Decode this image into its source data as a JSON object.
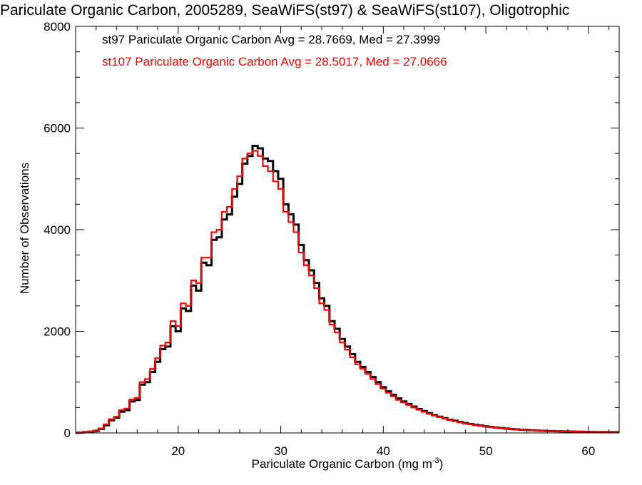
{
  "chart_data": {
    "type": "bar",
    "title": "Pariculate Organic Carbon, 2005289, SeaWiFS(st97) & SeaWiFS(st107), Oligotrophic",
    "xlabel": "Pariculate Organic Carbon (mg m",
    "xlabel_superscript": "-3",
    "xlabel_close": ")",
    "ylabel": "Number of Observations",
    "xlim": [
      10.0,
      63.0
    ],
    "ylim": [
      0,
      8000
    ],
    "xticks": [
      20,
      30,
      40,
      50,
      60
    ],
    "yticks": [
      0,
      2000,
      4000,
      6000,
      8000
    ],
    "grid": false,
    "legend_position": "top-left",
    "series": [
      {
        "name": "st97 Pariculate Organic Carbon Avg = 28.7669, Med = 27.3999",
        "label_color": "#000000",
        "color": "#000000",
        "points": [
          [
            10.0,
            0
          ],
          [
            10.5,
            5
          ],
          [
            11.0,
            15
          ],
          [
            11.5,
            25
          ],
          [
            12.0,
            40
          ],
          [
            12.5,
            80
          ],
          [
            13.0,
            150
          ],
          [
            13.5,
            250
          ],
          [
            14.0,
            300
          ],
          [
            14.5,
            420
          ],
          [
            15.0,
            450
          ],
          [
            15.5,
            620
          ],
          [
            16.0,
            650
          ],
          [
            16.5,
            950
          ],
          [
            17.0,
            1000
          ],
          [
            17.5,
            1200
          ],
          [
            18.0,
            1400
          ],
          [
            18.5,
            1650
          ],
          [
            19.0,
            1700
          ],
          [
            19.5,
            2100
          ],
          [
            20.0,
            2000
          ],
          [
            20.5,
            2450
          ],
          [
            21.0,
            2400
          ],
          [
            21.5,
            2900
          ],
          [
            22.0,
            2800
          ],
          [
            22.5,
            3350
          ],
          [
            23.0,
            3300
          ],
          [
            23.5,
            3800
          ],
          [
            24.0,
            3850
          ],
          [
            24.5,
            4200
          ],
          [
            25.0,
            4300
          ],
          [
            25.5,
            4650
          ],
          [
            26.0,
            4900
          ],
          [
            26.5,
            5300
          ],
          [
            27.0,
            5450
          ],
          [
            27.5,
            5650
          ],
          [
            28.0,
            5600
          ],
          [
            28.5,
            5400
          ],
          [
            29.0,
            5350
          ],
          [
            29.5,
            5150
          ],
          [
            30.0,
            5000
          ],
          [
            30.5,
            4500
          ],
          [
            31.0,
            4300
          ],
          [
            31.5,
            4100
          ],
          [
            32.0,
            3700
          ],
          [
            32.5,
            3400
          ],
          [
            33.0,
            3200
          ],
          [
            33.5,
            2950
          ],
          [
            34.0,
            2650
          ],
          [
            34.5,
            2500
          ],
          [
            35.0,
            2200
          ],
          [
            35.5,
            2050
          ],
          [
            36.0,
            1850
          ],
          [
            36.5,
            1700
          ],
          [
            37.0,
            1550
          ],
          [
            37.5,
            1400
          ],
          [
            38.0,
            1300
          ],
          [
            38.5,
            1200
          ],
          [
            39.0,
            1100
          ],
          [
            39.5,
            1000
          ],
          [
            40.0,
            900
          ],
          [
            40.5,
            820
          ],
          [
            41.0,
            750
          ],
          [
            41.5,
            680
          ],
          [
            42.0,
            620
          ],
          [
            42.5,
            570
          ],
          [
            43.0,
            520
          ],
          [
            43.5,
            470
          ],
          [
            44.0,
            430
          ],
          [
            44.5,
            390
          ],
          [
            45.0,
            350
          ],
          [
            45.5,
            320
          ],
          [
            46.0,
            290
          ],
          [
            46.5,
            260
          ],
          [
            47.0,
            240
          ],
          [
            47.5,
            215
          ],
          [
            48.0,
            195
          ],
          [
            48.5,
            175
          ],
          [
            49.0,
            160
          ],
          [
            49.5,
            145
          ],
          [
            50.0,
            130
          ],
          [
            50.5,
            118
          ],
          [
            51.0,
            106
          ],
          [
            51.5,
            96
          ],
          [
            52.0,
            86
          ],
          [
            52.5,
            78
          ],
          [
            53.0,
            70
          ],
          [
            53.5,
            64
          ],
          [
            54.0,
            58
          ],
          [
            54.5,
            52
          ],
          [
            55.0,
            47
          ],
          [
            55.5,
            43
          ],
          [
            56.0,
            39
          ],
          [
            56.5,
            36
          ],
          [
            57.0,
            33
          ],
          [
            57.5,
            30
          ],
          [
            58.0,
            28
          ],
          [
            58.5,
            26
          ],
          [
            59.0,
            24
          ],
          [
            59.5,
            22
          ],
          [
            60.0,
            20
          ],
          [
            60.5,
            19
          ],
          [
            61.0,
            18
          ],
          [
            61.5,
            17
          ],
          [
            62.0,
            16
          ],
          [
            62.5,
            15
          ],
          [
            63.0,
            15
          ]
        ]
      },
      {
        "name": "st107 Pariculate Organic Carbon Avg = 28.5017, Med = 27.0666",
        "label_color": "#ff0000",
        "color": "#ff0000",
        "points": [
          [
            10.0,
            0
          ],
          [
            10.5,
            5
          ],
          [
            11.0,
            15
          ],
          [
            11.5,
            30
          ],
          [
            12.0,
            45
          ],
          [
            12.5,
            90
          ],
          [
            13.0,
            170
          ],
          [
            13.5,
            270
          ],
          [
            14.0,
            320
          ],
          [
            14.5,
            450
          ],
          [
            15.0,
            480
          ],
          [
            15.5,
            660
          ],
          [
            16.0,
            690
          ],
          [
            16.5,
            1000
          ],
          [
            17.0,
            1060
          ],
          [
            17.5,
            1260
          ],
          [
            18.0,
            1470
          ],
          [
            18.5,
            1720
          ],
          [
            19.0,
            1780
          ],
          [
            19.5,
            2200
          ],
          [
            20.0,
            2100
          ],
          [
            20.5,
            2550
          ],
          [
            21.0,
            2500
          ],
          [
            21.5,
            3000
          ],
          [
            22.0,
            2950
          ],
          [
            22.5,
            3450
          ],
          [
            23.0,
            3450
          ],
          [
            23.5,
            3950
          ],
          [
            24.0,
            4000
          ],
          [
            24.5,
            4350
          ],
          [
            25.0,
            4450
          ],
          [
            25.5,
            4800
          ],
          [
            26.0,
            5050
          ],
          [
            26.5,
            5400
          ],
          [
            27.0,
            5500
          ],
          [
            27.5,
            5550
          ],
          [
            28.0,
            5450
          ],
          [
            28.5,
            5250
          ],
          [
            29.0,
            5150
          ],
          [
            29.5,
            4950
          ],
          [
            30.0,
            4800
          ],
          [
            30.5,
            4350
          ],
          [
            31.0,
            4150
          ],
          [
            31.5,
            3950
          ],
          [
            32.0,
            3550
          ],
          [
            32.5,
            3300
          ],
          [
            33.0,
            3100
          ],
          [
            33.5,
            2850
          ],
          [
            34.0,
            2550
          ],
          [
            34.5,
            2420
          ],
          [
            35.0,
            2130
          ],
          [
            35.5,
            1980
          ],
          [
            36.0,
            1780
          ],
          [
            36.5,
            1640
          ],
          [
            37.0,
            1490
          ],
          [
            37.5,
            1350
          ],
          [
            38.0,
            1260
          ],
          [
            38.5,
            1160
          ],
          [
            39.0,
            1060
          ],
          [
            39.5,
            960
          ],
          [
            40.0,
            870
          ],
          [
            40.5,
            790
          ],
          [
            41.0,
            720
          ],
          [
            41.5,
            650
          ],
          [
            42.0,
            600
          ],
          [
            42.5,
            550
          ],
          [
            43.0,
            500
          ],
          [
            43.5,
            455
          ],
          [
            44.0,
            415
          ],
          [
            44.5,
            375
          ],
          [
            45.0,
            340
          ],
          [
            45.5,
            310
          ],
          [
            46.0,
            280
          ],
          [
            46.5,
            250
          ],
          [
            47.0,
            230
          ],
          [
            47.5,
            205
          ],
          [
            48.0,
            185
          ],
          [
            48.5,
            168
          ],
          [
            49.0,
            152
          ],
          [
            49.5,
            138
          ],
          [
            50.0,
            125
          ],
          [
            50.5,
            113
          ],
          [
            51.0,
            102
          ],
          [
            51.5,
            92
          ],
          [
            52.0,
            83
          ],
          [
            52.5,
            75
          ],
          [
            53.0,
            68
          ],
          [
            53.5,
            62
          ],
          [
            54.0,
            56
          ],
          [
            54.5,
            50
          ],
          [
            55.0,
            46
          ],
          [
            55.5,
            42
          ],
          [
            56.0,
            38
          ],
          [
            56.5,
            35
          ],
          [
            57.0,
            32
          ],
          [
            57.5,
            29
          ],
          [
            58.0,
            27
          ],
          [
            58.5,
            25
          ],
          [
            59.0,
            23
          ],
          [
            59.5,
            21
          ],
          [
            60.0,
            20
          ],
          [
            60.5,
            19
          ],
          [
            61.0,
            18
          ],
          [
            61.5,
            17
          ],
          [
            62.0,
            16
          ],
          [
            62.5,
            15
          ],
          [
            63.0,
            15
          ]
        ]
      }
    ]
  }
}
